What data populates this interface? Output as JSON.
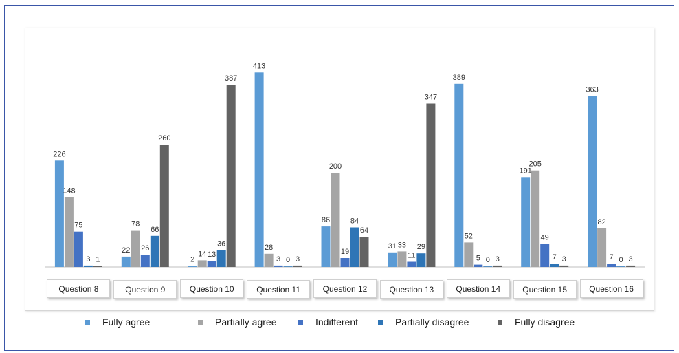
{
  "chart_data": {
    "type": "bar",
    "categories": [
      "Question 8",
      "Question 9",
      "Question 10",
      "Question 11",
      "Question 12",
      "Question 13",
      "Question 14",
      "Question 15",
      "Question 16"
    ],
    "series": [
      {
        "name": "Fully agree",
        "color": "#5b9bd5",
        "values": [
          226,
          22,
          2,
          413,
          86,
          31,
          389,
          191,
          363
        ]
      },
      {
        "name": "Partially agree",
        "color": "#a5a5a5",
        "values": [
          148,
          78,
          14,
          28,
          200,
          33,
          52,
          205,
          82
        ]
      },
      {
        "name": "Indifferent",
        "color": "#4472c4",
        "values": [
          75,
          26,
          13,
          3,
          19,
          11,
          5,
          49,
          7
        ]
      },
      {
        "name": "Partially disagree",
        "color": "#2e75b6",
        "values": [
          3,
          66,
          36,
          0,
          84,
          29,
          0,
          7,
          0
        ]
      },
      {
        "name": "Fully disagree",
        "color": "#636363",
        "values": [
          1,
          260,
          387,
          3,
          64,
          347,
          3,
          3,
          3
        ]
      }
    ],
    "ylim": [
      0,
      450
    ],
    "grid": false,
    "legend": "bottom",
    "data_labels": [
      [
        "226",
        "148",
        "75",
        "3",
        "1"
      ],
      [
        "22",
        "78",
        "26",
        "66",
        "260"
      ],
      [
        "2",
        "14",
        "13",
        "36",
        "387"
      ],
      [
        "413",
        "28",
        "3",
        "0",
        "3"
      ],
      [
        "86",
        "200",
        "19",
        "84",
        "64"
      ],
      [
        "31",
        "33",
        "11",
        "29",
        "347"
      ],
      [
        "389",
        "52",
        "5",
        "0",
        "3"
      ],
      [
        "191",
        "205",
        "49",
        "7",
        "3"
      ],
      [
        "363",
        "82",
        "7",
        "0",
        "3"
      ]
    ]
  }
}
